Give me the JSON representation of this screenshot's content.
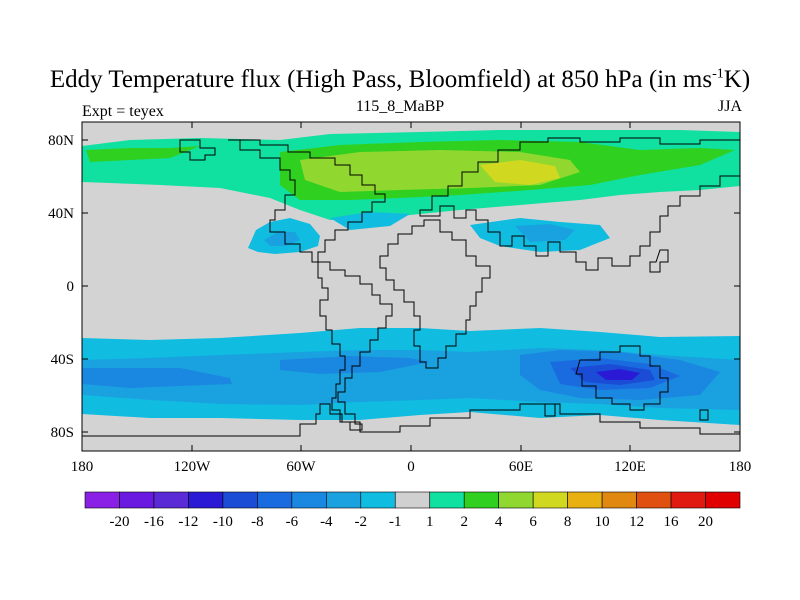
{
  "title": {
    "main_before": "Eddy Temperature flux (High Pass, Bloomfield) at 850 hPa (in ms",
    "superscript": "-1",
    "main_after": "K)",
    "center_label": "115_8_MaBP",
    "left_label": "Expt = teyex",
    "right_label": "JJA"
  },
  "axes": {
    "lat_labels": [
      "80N",
      "40N",
      "0",
      "40S",
      "80S"
    ],
    "lon_labels": [
      "180",
      "120W",
      "60W",
      "0",
      "60E",
      "120E",
      "180"
    ]
  },
  "colorbar": {
    "labels": [
      "-20",
      "-16",
      "-12",
      "-10",
      "-8",
      "-6",
      "-4",
      "-2",
      "-1",
      "1",
      "2",
      "4",
      "6",
      "8",
      "10",
      "12",
      "16",
      "20"
    ],
    "colors": [
      "#8a1fe6",
      "#6a1ae0",
      "#5a2ad6",
      "#2a1ad6",
      "#1a4cd6",
      "#1a6ae0",
      "#1a88e0",
      "#1aa2e0",
      "#10bce0",
      "#d0d0d0",
      "#10e0a0",
      "#30d020",
      "#90d830",
      "#d0d820",
      "#e8b010",
      "#e08810",
      "#e05010",
      "#e01a10",
      "#e00000"
    ]
  },
  "chart_data": {
    "type": "heatmap",
    "variable": "Eddy Temperature flux (High Pass, Bloomfield) at 850 hPa",
    "units": "ms-1K",
    "season": "JJA",
    "experiment": "teyex",
    "lon_range": [
      -180,
      180
    ],
    "lat_range": [
      -90,
      90
    ],
    "features": [
      {
        "region": "Northern mid-high latitudes over Eurasia",
        "lat_center": 60,
        "lon_center": 60,
        "value": 6
      },
      {
        "region": "North Atlantic / North America",
        "lat_center": 65,
        "lon_center": -130,
        "value": 2
      },
      {
        "region": "Southern Ocean storm track",
        "lat_center": -45,
        "lon_center": 0,
        "value": -4
      },
      {
        "region": "South Indian Ocean / Australia",
        "lat_center": -50,
        "lon_center": 110,
        "value": -12
      }
    ]
  }
}
